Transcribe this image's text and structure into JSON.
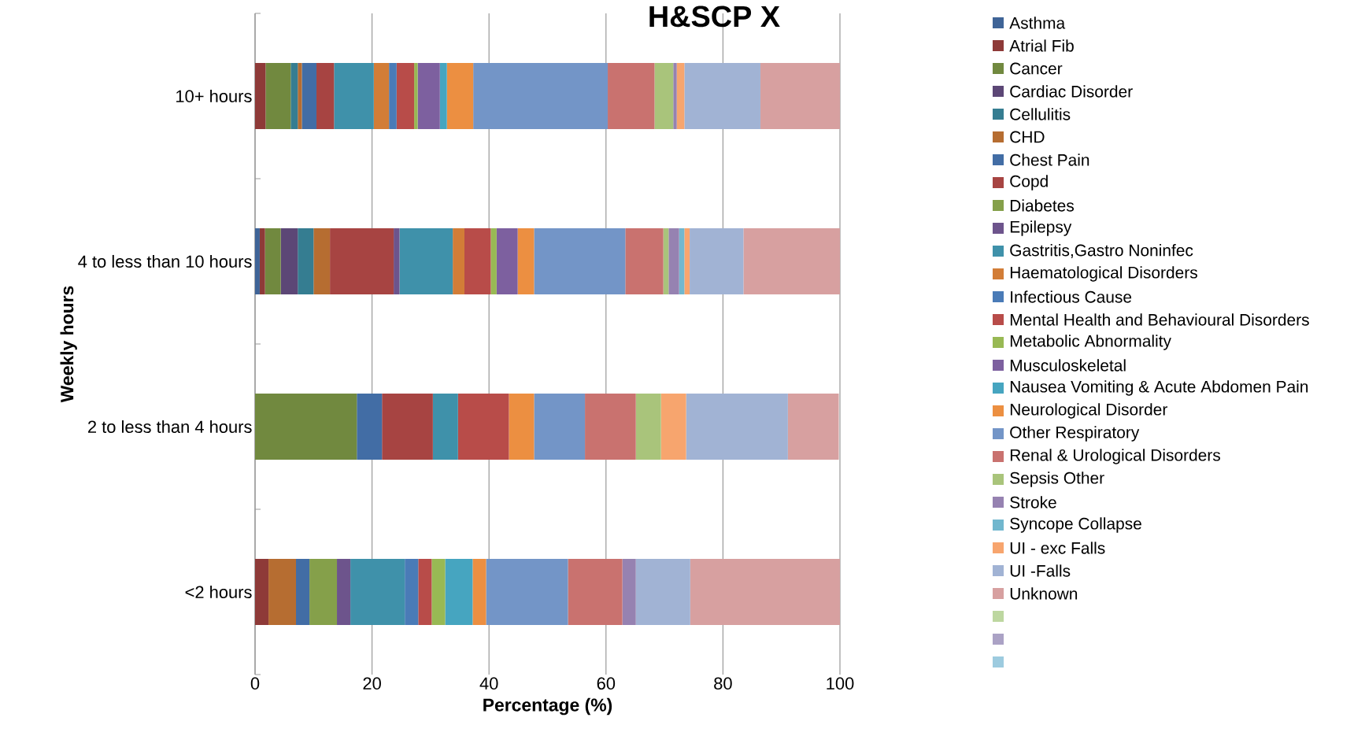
{
  "chart_data": {
    "type": "bar",
    "orientation": "horizontal",
    "stacked": true,
    "title": "H&SCP X",
    "xlabel": "Percentage (%)",
    "ylabel": "Weekly hours",
    "categories": [
      "10+ hours",
      "4 to less than 10 hours",
      "2 to less than 4 hours",
      "<2 hours"
    ],
    "xlim": [
      0,
      100
    ],
    "xticks": [
      0,
      20,
      40,
      60,
      80,
      100
    ],
    "grid": "x",
    "legend": "right",
    "series": [
      {
        "name": "Asthma",
        "color": "#3f6497",
        "values": [
          null,
          0.8,
          null,
          null
        ]
      },
      {
        "name": "Atrial Fib",
        "color": "#8e3a38",
        "values": [
          1.8,
          0.9,
          null,
          2.3
        ]
      },
      {
        "name": "Cancer",
        "color": "#71893f",
        "values": [
          4.3,
          2.7,
          17.4,
          null
        ]
      },
      {
        "name": "Cardiac Disorder",
        "color": "#5c4776",
        "values": [
          null,
          2.9,
          null,
          null
        ]
      },
      {
        "name": "Cellulitis",
        "color": "#357d91",
        "values": [
          1.2,
          2.7,
          null,
          null
        ]
      },
      {
        "name": "CHD",
        "color": "#b66d31",
        "values": [
          0.7,
          2.8,
          null,
          4.7
        ]
      },
      {
        "name": "Chest Pain",
        "color": "#426da5",
        "values": [
          2.5,
          null,
          4.3,
          2.3
        ]
      },
      {
        "name": "Copd",
        "color": "#a74442",
        "values": [
          3.0,
          10.9,
          8.7,
          null
        ]
      },
      {
        "name": "Diabetes",
        "color": "#85a04a",
        "values": [
          null,
          null,
          null,
          4.7
        ]
      },
      {
        "name": "Epilepsy",
        "color": "#6d548c",
        "values": [
          null,
          1.0,
          null,
          2.3
        ]
      },
      {
        "name": "Gastritis,Gastro Noninfec",
        "color": "#3f91aa",
        "values": [
          6.8,
          9.1,
          4.3,
          9.3
        ]
      },
      {
        "name": "Haematological Disorders",
        "color": "#d27d37",
        "values": [
          2.6,
          2.0,
          null,
          null
        ]
      },
      {
        "name": "Infectious Cause",
        "color": "#4a7bb7",
        "values": [
          1.3,
          null,
          null,
          2.3
        ]
      },
      {
        "name": "Mental Health and Behavioural Disorders",
        "color": "#b84c49",
        "values": [
          3.0,
          4.5,
          8.7,
          2.3
        ]
      },
      {
        "name": "Metabolic Abnormality",
        "color": "#98b954",
        "values": [
          0.6,
          1.0,
          null,
          2.3
        ]
      },
      {
        "name": "Musculoskeletal",
        "color": "#7d609f",
        "values": [
          3.8,
          3.6,
          null,
          null
        ]
      },
      {
        "name": "Nausea Vomiting & Acute Abdomen Pain",
        "color": "#46a5c0",
        "values": [
          1.2,
          null,
          null,
          4.7
        ]
      },
      {
        "name": "Neurological Disorder",
        "color": "#ec8f41",
        "values": [
          4.5,
          2.8,
          4.3,
          2.3
        ]
      },
      {
        "name": "Other Respiratory",
        "color": "#7395c7",
        "values": [
          23.0,
          15.6,
          8.7,
          14.0
        ]
      },
      {
        "name": "Renal & Urological Disorders",
        "color": "#c9726f",
        "values": [
          8.0,
          6.5,
          8.7,
          9.3
        ]
      },
      {
        "name": "Sepsis Other",
        "color": "#a9c47b",
        "values": [
          3.2,
          0.9,
          4.3,
          null
        ]
      },
      {
        "name": "Stroke",
        "color": "#9682b1",
        "values": [
          0.6,
          1.8,
          null,
          2.3
        ]
      },
      {
        "name": "Syncope Collapse",
        "color": "#71b7ce",
        "values": [
          null,
          0.9,
          null,
          null
        ]
      },
      {
        "name": "UI - exc Falls",
        "color": "#f7a56e",
        "values": [
          1.3,
          0.9,
          4.3,
          null
        ]
      },
      {
        "name": "UI -Falls",
        "color": "#a1b3d4",
        "values": [
          13.0,
          9.2,
          17.4,
          9.3
        ]
      },
      {
        "name": "Unknown",
        "color": "#d7a0a0",
        "values": [
          13.6,
          16.5,
          8.7,
          25.6
        ]
      },
      {
        "color": "#bdd7a0",
        "values": [
          null,
          null,
          null,
          null
        ]
      },
      {
        "color": "#aba2c5",
        "values": [
          null,
          null,
          null,
          null
        ]
      },
      {
        "color": "#9dcbdf",
        "values": [
          null,
          null,
          null,
          null
        ]
      }
    ]
  }
}
